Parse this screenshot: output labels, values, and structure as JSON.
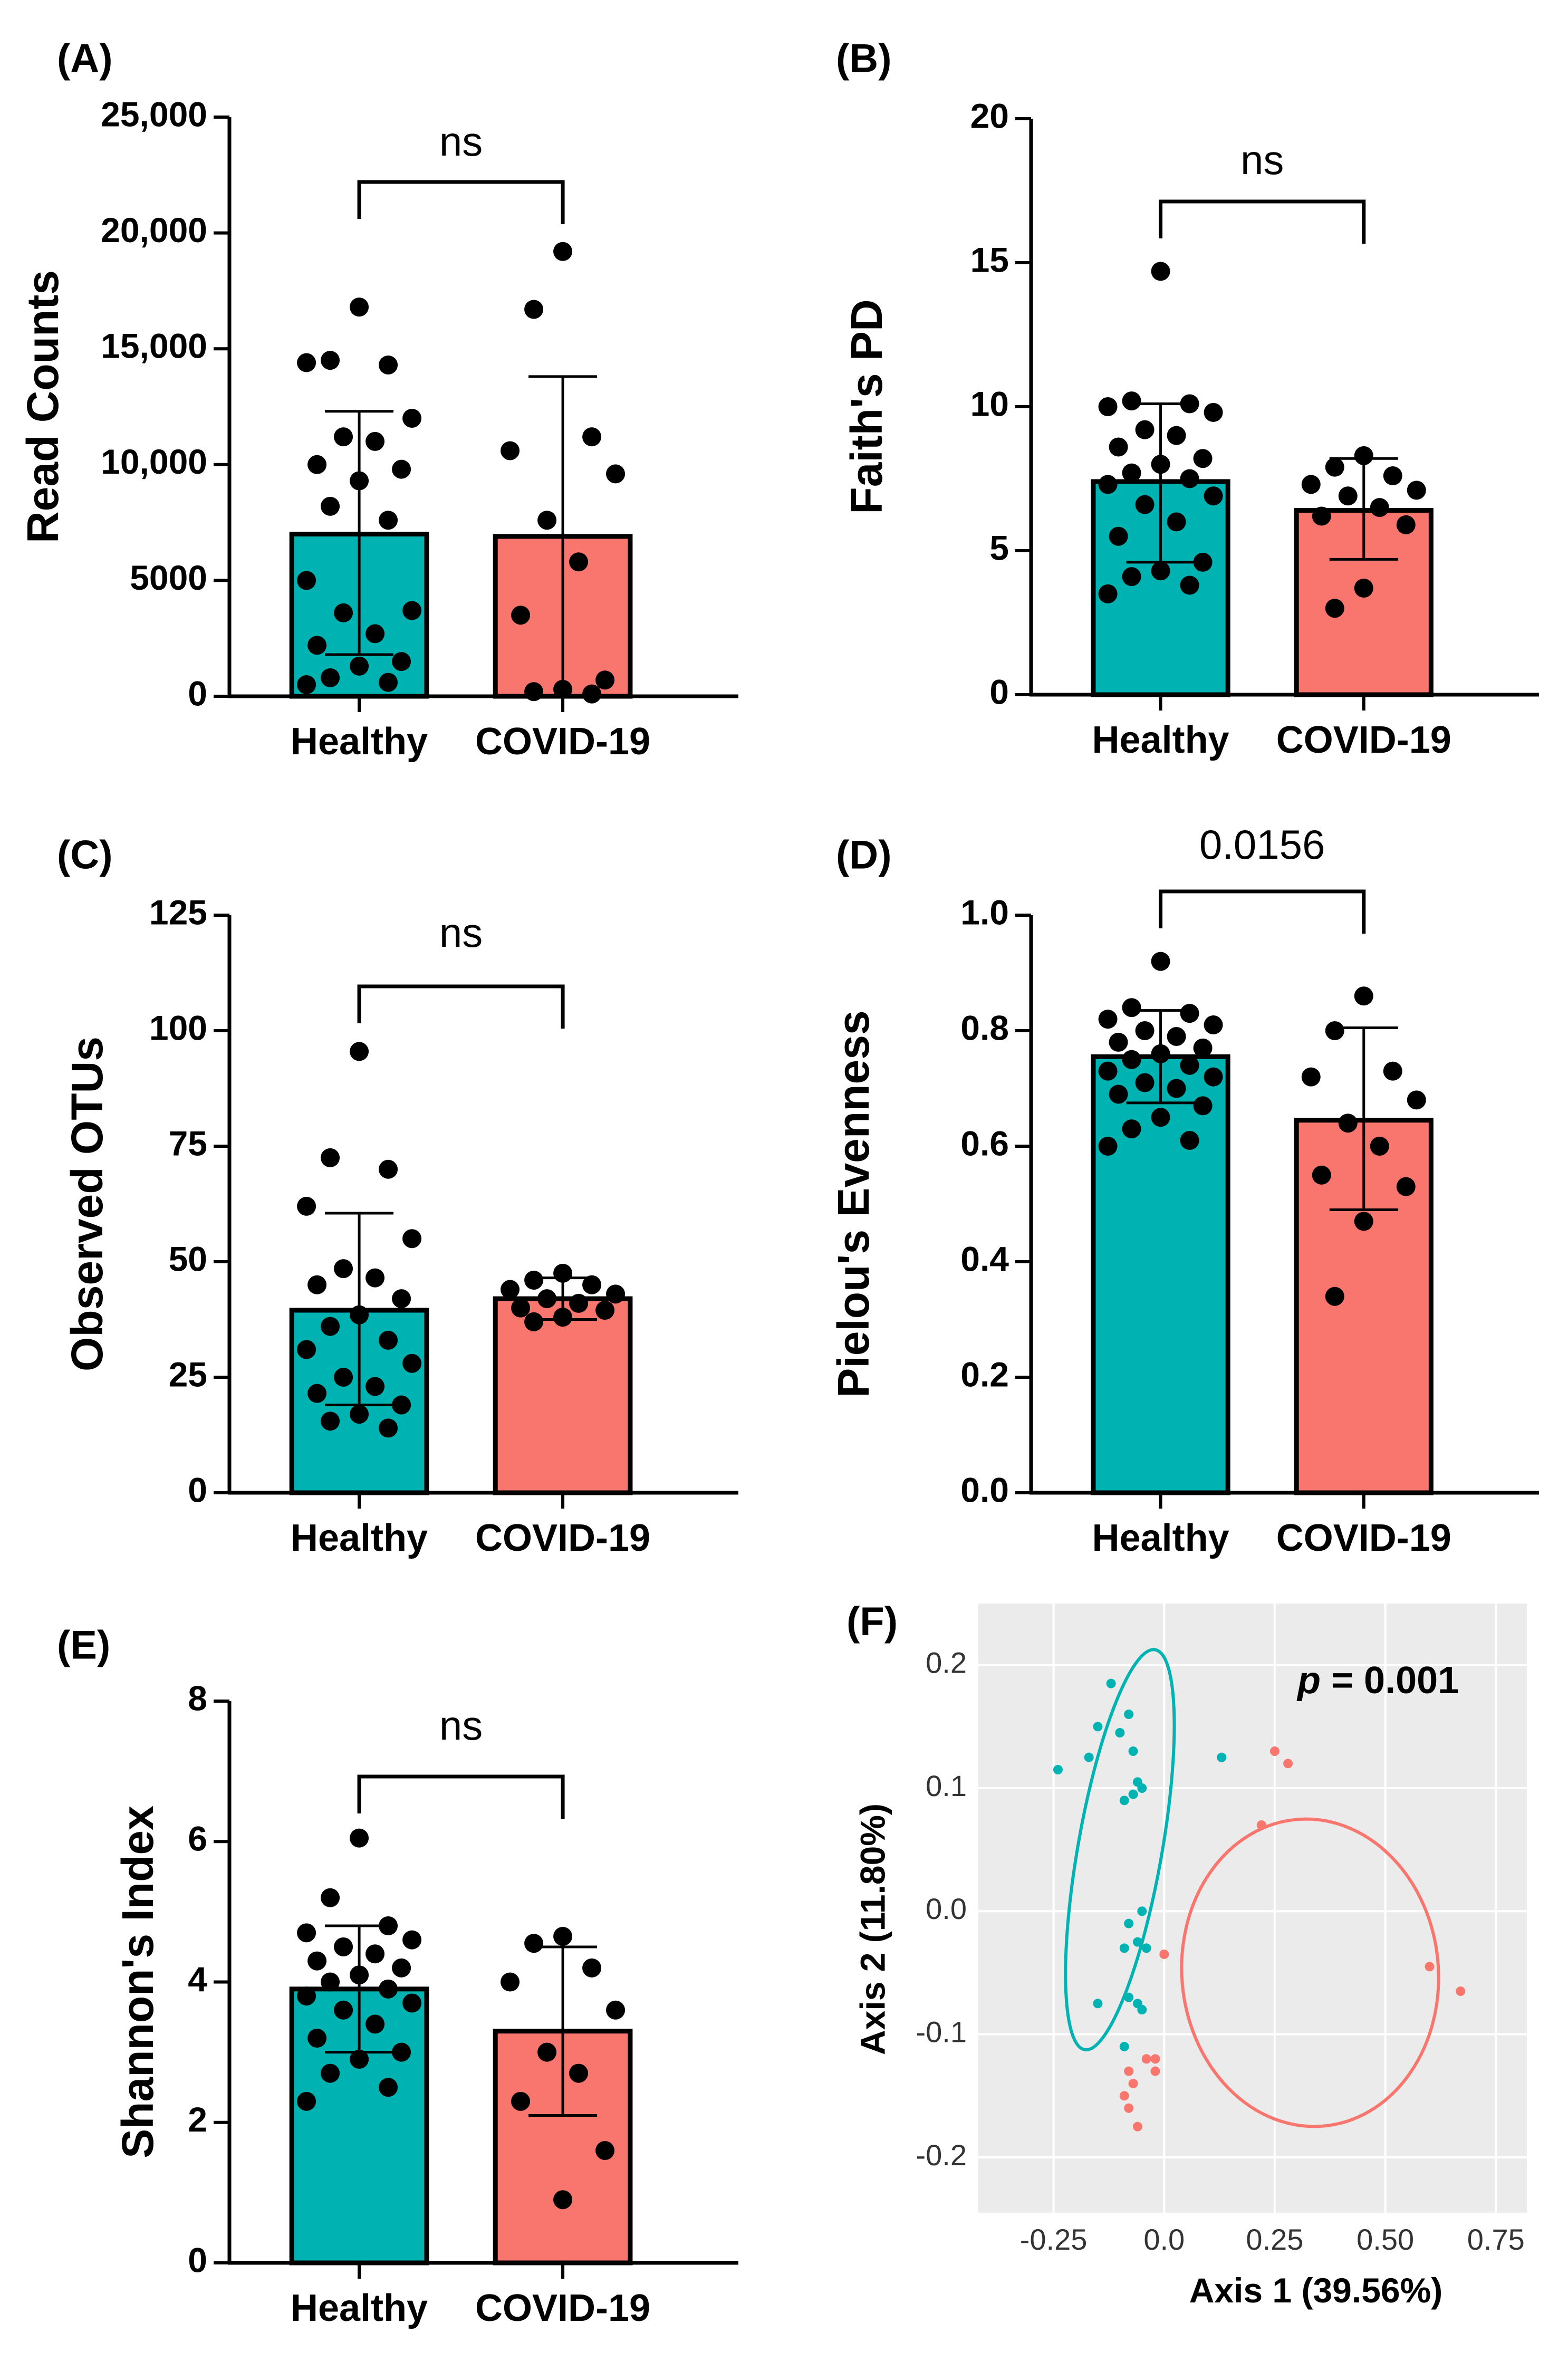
{
  "colors": {
    "healthy": "#00B3B3",
    "covid": "#F8766D",
    "dot": "#000000",
    "pca_bg": "#EBEBEB"
  },
  "chart_data": [
    {
      "id": "A",
      "panel_label": "(A)",
      "type": "bar",
      "ylabel": "Read Counts",
      "categories": [
        "Healthy",
        "COVID-19"
      ],
      "ylim": [
        0,
        25000
      ],
      "ticks": [
        0,
        5000,
        10000,
        15000,
        20000,
        25000
      ],
      "tick_labels": [
        "0",
        "5000",
        "10,000",
        "15,000",
        "20,000",
        "25,000"
      ],
      "significance": "ns",
      "groups": [
        {
          "name": "Healthy",
          "mean": 7000,
          "sd_low": 1800,
          "sd_high": 12300,
          "points": [
            16800,
            14500,
            14300,
            14400,
            12000,
            11200,
            11000,
            10000,
            9800,
            9300,
            8200,
            7600,
            5000,
            3700,
            3600,
            2700,
            2200,
            1500,
            1300,
            800,
            600,
            500
          ]
        },
        {
          "name": "COVID-19",
          "mean": 6900,
          "sd_low": 0,
          "sd_high": 13800,
          "points": [
            19200,
            16700,
            11200,
            10600,
            9600,
            7600,
            5800,
            3500,
            700,
            300,
            200,
            100
          ]
        }
      ]
    },
    {
      "id": "B",
      "panel_label": "(B)",
      "type": "bar",
      "ylabel": "Faith's PD",
      "categories": [
        "Healthy",
        "COVID-19"
      ],
      "ylim": [
        0,
        20
      ],
      "ticks": [
        0,
        5,
        10,
        15,
        20
      ],
      "tick_labels": [
        "0",
        "5",
        "10",
        "15",
        "20"
      ],
      "significance": "ns",
      "groups": [
        {
          "name": "Healthy",
          "mean": 7.4,
          "sd_low": 4.6,
          "sd_high": 10.1,
          "points": [
            14.7,
            10.2,
            10.1,
            10.0,
            9.8,
            9.2,
            9.0,
            8.6,
            8.2,
            8.0,
            7.7,
            7.5,
            7.3,
            6.9,
            6.6,
            6.0,
            5.5,
            4.6,
            4.3,
            4.1,
            3.8,
            3.5
          ]
        },
        {
          "name": "COVID-19",
          "mean": 6.4,
          "sd_low": 4.7,
          "sd_high": 8.2,
          "points": [
            8.3,
            7.9,
            7.6,
            7.3,
            7.1,
            6.9,
            6.5,
            6.2,
            5.9,
            3.7,
            3.0
          ]
        }
      ]
    },
    {
      "id": "C",
      "panel_label": "(C)",
      "type": "bar",
      "ylabel": "Observed OTUs",
      "categories": [
        "Healthy",
        "COVID-19"
      ],
      "ylim": [
        0,
        125
      ],
      "ticks": [
        0,
        25,
        50,
        75,
        100,
        125
      ],
      "tick_labels": [
        "0",
        "25",
        "50",
        "75",
        "100",
        "125"
      ],
      "significance": "ns",
      "groups": [
        {
          "name": "Healthy",
          "mean": 39.5,
          "sd_low": 19,
          "sd_high": 60.5,
          "points": [
            95.5,
            72.5,
            70,
            62,
            55,
            48.5,
            46.5,
            45,
            42,
            38.5,
            36,
            33,
            31,
            28,
            25,
            23,
            21.5,
            19,
            17,
            15.5,
            14
          ]
        },
        {
          "name": "COVID-19",
          "mean": 42,
          "sd_low": 37.5,
          "sd_high": 46.5,
          "points": [
            47.5,
            46,
            45,
            44,
            43,
            42,
            41,
            40,
            39.5,
            38,
            37
          ]
        }
      ]
    },
    {
      "id": "D",
      "panel_label": "(D)",
      "type": "bar",
      "ylabel": "Pielou's Evenness",
      "categories": [
        "Healthy",
        "COVID-19"
      ],
      "ylim": [
        0,
        1.0
      ],
      "ticks": [
        0,
        0.2,
        0.4,
        0.6,
        0.8,
        1.0
      ],
      "tick_labels": [
        "0.0",
        "0.2",
        "0.4",
        "0.6",
        "0.8",
        "1.0"
      ],
      "significance": "0.0156",
      "groups": [
        {
          "name": "Healthy",
          "mean": 0.755,
          "sd_low": 0.675,
          "sd_high": 0.835,
          "points": [
            0.92,
            0.84,
            0.83,
            0.82,
            0.81,
            0.8,
            0.79,
            0.78,
            0.77,
            0.76,
            0.75,
            0.74,
            0.73,
            0.72,
            0.71,
            0.7,
            0.69,
            0.67,
            0.65,
            0.63,
            0.61,
            0.6
          ]
        },
        {
          "name": "COVID-19",
          "mean": 0.645,
          "sd_low": 0.49,
          "sd_high": 0.805,
          "points": [
            0.86,
            0.8,
            0.73,
            0.72,
            0.68,
            0.64,
            0.6,
            0.55,
            0.53,
            0.47,
            0.34
          ]
        }
      ]
    },
    {
      "id": "E",
      "panel_label": "(E)",
      "type": "bar",
      "ylabel": "Shannon's Index",
      "categories": [
        "Healthy",
        "COVID-19"
      ],
      "ylim": [
        0,
        8
      ],
      "ticks": [
        0,
        2,
        4,
        6,
        8
      ],
      "tick_labels": [
        "0",
        "2",
        "4",
        "6",
        "8"
      ],
      "significance": "ns",
      "groups": [
        {
          "name": "Healthy",
          "mean": 3.9,
          "sd_low": 3.0,
          "sd_high": 4.8,
          "points": [
            6.05,
            5.2,
            4.8,
            4.7,
            4.6,
            4.5,
            4.4,
            4.3,
            4.2,
            4.1,
            4.0,
            3.9,
            3.8,
            3.7,
            3.6,
            3.4,
            3.2,
            3.0,
            2.9,
            2.7,
            2.5,
            2.3
          ]
        },
        {
          "name": "COVID-19",
          "mean": 3.3,
          "sd_low": 2.1,
          "sd_high": 4.5,
          "points": [
            4.65,
            4.55,
            4.2,
            4.0,
            3.6,
            3.0,
            2.7,
            2.3,
            1.6,
            0.9
          ]
        }
      ]
    },
    {
      "id": "F",
      "panel_label": "(F)",
      "type": "scatter",
      "xlabel": "Axis 1 (39.56%)",
      "ylabel": "Axis 2 (11.80%)",
      "annotation_p": "p",
      "annotation_value": " = 0.001",
      "xlim": [
        -0.42,
        0.82
      ],
      "ylim": [
        -0.245,
        0.25
      ],
      "x_ticks": [
        -0.25,
        0.0,
        0.25,
        0.5,
        0.75
      ],
      "x_tick_labels": [
        "-0.25",
        "0.0",
        "0.25",
        "0.50",
        "0.75"
      ],
      "y_ticks": [
        -0.2,
        -0.1,
        0.0,
        0.1,
        0.2
      ],
      "y_tick_labels": [
        "-0.2",
        "-0.1",
        "0.0",
        "0.1",
        "0.2"
      ],
      "series": [
        {
          "name": "Healthy",
          "points": [
            [
              -0.12,
              0.185
            ],
            [
              -0.15,
              0.15
            ],
            [
              -0.1,
              0.145
            ],
            [
              -0.08,
              0.16
            ],
            [
              -0.07,
              0.13
            ],
            [
              -0.24,
              0.115
            ],
            [
              -0.17,
              0.125
            ],
            [
              -0.06,
              0.105
            ],
            [
              -0.05,
              0.1
            ],
            [
              -0.07,
              0.095
            ],
            [
              -0.09,
              0.09
            ],
            [
              0.13,
              0.125
            ],
            [
              -0.05,
              0.0
            ],
            [
              -0.08,
              -0.01
            ],
            [
              -0.06,
              -0.025
            ],
            [
              -0.04,
              -0.03
            ],
            [
              -0.09,
              -0.03
            ],
            [
              -0.08,
              -0.07
            ],
            [
              -0.06,
              -0.075
            ],
            [
              -0.15,
              -0.075
            ],
            [
              -0.05,
              -0.08
            ],
            [
              -0.09,
              -0.11
            ]
          ],
          "ellipse": {
            "cx": -0.1,
            "cy": 0.05,
            "rx": 0.19,
            "ry": 0.33,
            "angle_deg": 10
          }
        },
        {
          "name": "COVID-19",
          "points": [
            [
              0.25,
              0.13
            ],
            [
              0.28,
              0.12
            ],
            [
              0.22,
              0.07
            ],
            [
              0.0,
              -0.035
            ],
            [
              -0.08,
              -0.13
            ],
            [
              -0.07,
              -0.14
            ],
            [
              -0.08,
              -0.16
            ],
            [
              -0.06,
              -0.175
            ],
            [
              -0.04,
              -0.12
            ],
            [
              -0.09,
              -0.15
            ],
            [
              -0.02,
              -0.13
            ],
            [
              -0.02,
              -0.12
            ],
            [
              0.6,
              -0.045
            ],
            [
              0.67,
              -0.065
            ]
          ],
          "ellipse": {
            "cx": 0.33,
            "cy": -0.05,
            "rx": 0.58,
            "ry": 0.25,
            "angle_deg": -5
          }
        }
      ]
    }
  ]
}
